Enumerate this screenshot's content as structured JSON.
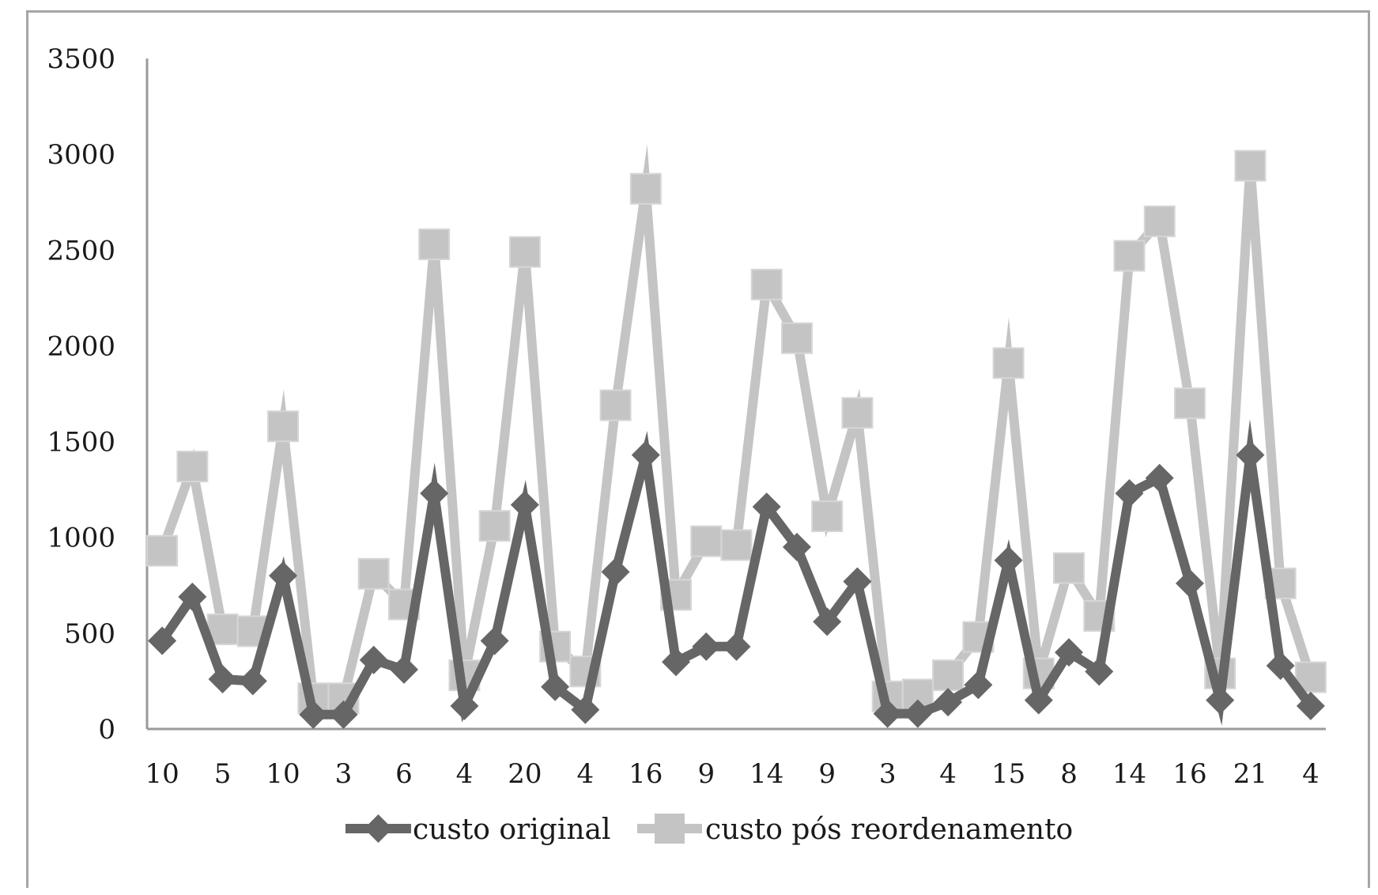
{
  "chart_data": {
    "type": "line",
    "title": "",
    "xlabel": "",
    "ylabel": "",
    "ylim": [
      0,
      3500
    ],
    "yticks": [
      0,
      500,
      1000,
      1500,
      2000,
      2500,
      3000,
      3500
    ],
    "ytick_labels": [
      "0",
      "500",
      "1000",
      "1500",
      "2000",
      "2500",
      "3000",
      "3500"
    ],
    "categories": [
      "10",
      "",
      "5",
      "",
      "10",
      "",
      "3",
      "",
      "6",
      "",
      "4",
      "",
      "20",
      "",
      "4",
      "",
      "16",
      "",
      "9",
      "",
      "14",
      "",
      "9",
      "",
      "3",
      "",
      "4",
      "",
      "15",
      "",
      "8",
      "",
      "14",
      "",
      "16",
      "",
      "21",
      "",
      "4"
    ],
    "legend": "bottom",
    "grid": false,
    "series": [
      {
        "name": "custo original",
        "color": "#666666",
        "marker": "diamond",
        "values": [
          460,
          690,
          260,
          250,
          800,
          75,
          75,
          360,
          310,
          1230,
          120,
          460,
          1170,
          220,
          100,
          820,
          1430,
          350,
          430,
          430,
          1160,
          950,
          560,
          770,
          80,
          80,
          140,
          230,
          880,
          150,
          400,
          300,
          1230,
          1310,
          760,
          150,
          1430,
          330,
          120
        ]
      },
      {
        "name": "custo pós reordenamento",
        "color": "#c4c4c4",
        "marker": "square",
        "values": [
          930,
          1370,
          520,
          510,
          1580,
          160,
          160,
          810,
          650,
          2530,
          280,
          1060,
          2490,
          430,
          300,
          1690,
          2820,
          700,
          980,
          960,
          2320,
          2040,
          1110,
          1650,
          170,
          180,
          280,
          480,
          1910,
          290,
          840,
          590,
          2470,
          2650,
          1700,
          290,
          2940,
          760,
          270
        ]
      }
    ]
  }
}
